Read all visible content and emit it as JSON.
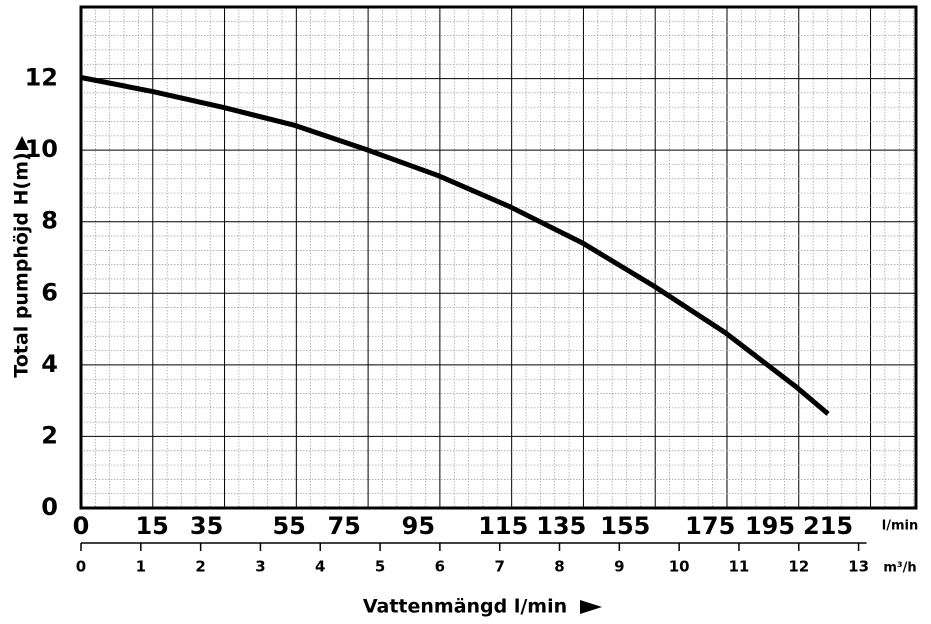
{
  "chart_data": {
    "type": "line",
    "ylabel": "Total pumphöjd H(m)",
    "xlabel": "Vattenmängd l/min",
    "xunit": "m³/h",
    "x2unit": "l/min",
    "xlim": [
      0,
      13.96
    ],
    "ylim": [
      0,
      14
    ],
    "xticks": [
      0,
      1,
      2,
      3,
      4,
      5,
      6,
      7,
      8,
      9,
      10,
      11,
      12,
      13
    ],
    "x2ticks": [
      {
        "value": 0,
        "label": "0"
      },
      {
        "value": 1.19,
        "label": "15"
      },
      {
        "value": 2.1,
        "label": "35"
      },
      {
        "value": 3.48,
        "label": "55"
      },
      {
        "value": 4.4,
        "label": "75"
      },
      {
        "value": 5.64,
        "label": "95"
      },
      {
        "value": 7.06,
        "label": "115"
      },
      {
        "value": 8.03,
        "label": "135"
      },
      {
        "value": 9.1,
        "label": "155"
      },
      {
        "value": 10.52,
        "label": "175"
      },
      {
        "value": 11.52,
        "label": "195"
      },
      {
        "value": 12.49,
        "label": "215"
      }
    ],
    "yticks": [
      0,
      2,
      4,
      6,
      8,
      10,
      12
    ],
    "grid": {
      "x_step": 1.2,
      "y_step": 2,
      "minor_divisions": 5
    },
    "series": [
      {
        "color": "#000000",
        "x": [
          0,
          1.19,
          2.39,
          3.58,
          4.78,
          5.97,
          7.17,
          8.38,
          9.57,
          10.77,
          11.96,
          12.49
        ],
        "values": [
          12.03,
          11.64,
          11.19,
          10.69,
          10.01,
          9.29,
          8.42,
          7.41,
          6.21,
          4.9,
          3.38,
          2.63
        ]
      }
    ]
  }
}
